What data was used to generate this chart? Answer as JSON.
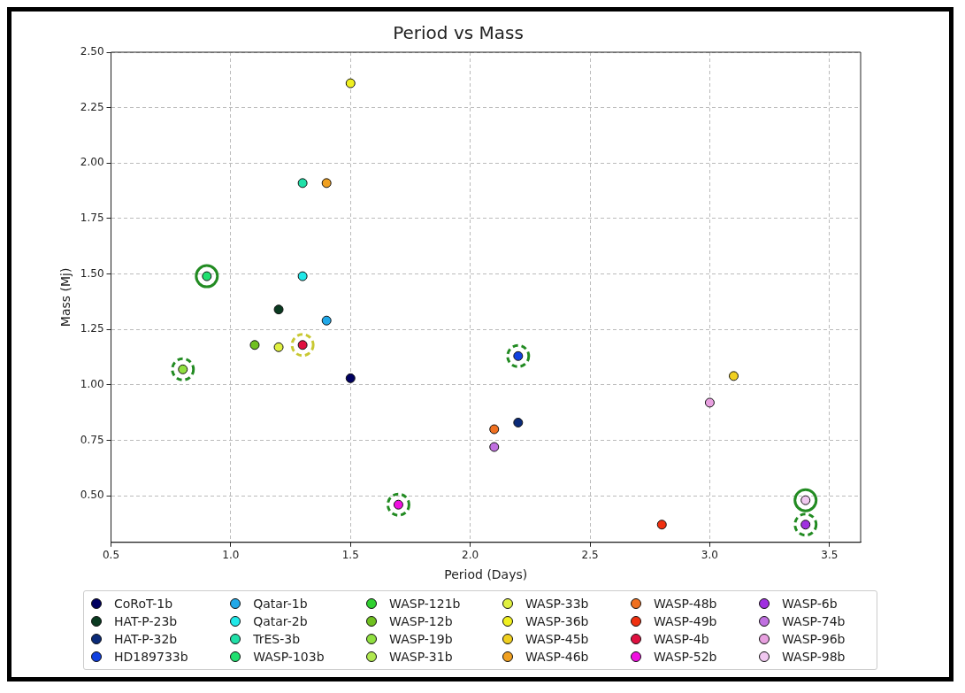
{
  "chart_data": {
    "type": "scatter",
    "title": "Period vs Mass",
    "xlabel": "Period (Days)",
    "ylabel": "Mass (Mj)",
    "xlim": [
      0.5,
      3.63
    ],
    "xticks": [
      {
        "value": 0.5,
        "label": "0.5"
      },
      {
        "value": 1,
        "label": "1.0"
      },
      {
        "value": 1.5,
        "label": "1.5"
      },
      {
        "value": 2,
        "label": "2.0"
      },
      {
        "value": 2.5,
        "label": "2.5"
      },
      {
        "value": 3,
        "label": "3.0"
      },
      {
        "value": 3.5,
        "label": "3.5"
      }
    ],
    "ylim": [
      0.29,
      2.5
    ],
    "yticks": [
      {
        "value": 0.5,
        "label": "0.50"
      },
      {
        "value": 0.75,
        "label": "0.75"
      },
      {
        "value": 1,
        "label": "1.00"
      },
      {
        "value": 1.25,
        "label": "1.25"
      },
      {
        "value": 1.5,
        "label": "1.50"
      },
      {
        "value": 1.75,
        "label": "1.75"
      },
      {
        "value": 2,
        "label": "2.00"
      },
      {
        "value": 2.25,
        "label": "2.25"
      },
      {
        "value": 2.5,
        "label": "2.50"
      }
    ],
    "grid": true,
    "legend": "bottom",
    "marker": "circle",
    "series": [
      {
        "name": "CoRoT-1b",
        "color": "#000060",
        "x": [
          1.5
        ],
        "values": [
          1.03
        ]
      },
      {
        "name": "HAT-P-23b",
        "color": "#0a3a20",
        "x": [
          1.2
        ],
        "values": [
          1.34
        ]
      },
      {
        "name": "HAT-P-32b",
        "color": "#0a2a78",
        "x": [
          2.2
        ],
        "values": [
          0.83
        ]
      },
      {
        "name": "HD189733b",
        "color": "#1040e0",
        "x": [
          2.2
        ],
        "values": [
          1.13
        ]
      },
      {
        "name": "Qatar-1b",
        "color": "#20a8e8",
        "x": [
          1.4
        ],
        "values": [
          1.29
        ]
      },
      {
        "name": "Qatar-2b",
        "color": "#20e8e8",
        "x": [
          1.3
        ],
        "values": [
          1.49
        ]
      },
      {
        "name": "TrES-3b",
        "color": "#20e0a8",
        "x": [
          1.3
        ],
        "values": [
          1.91
        ]
      },
      {
        "name": "WASP-103b",
        "color": "#20e070",
        "x": [
          0.9
        ],
        "values": [
          1.49
        ]
      },
      {
        "name": "WASP-121b",
        "color": "#30d030"
      },
      {
        "name": "WASP-12b",
        "color": "#70c020",
        "x": [
          1.1
        ],
        "values": [
          1.18
        ]
      },
      {
        "name": "WASP-19b",
        "color": "#90e040",
        "x": [
          0.8
        ],
        "values": [
          1.07
        ]
      },
      {
        "name": "WASP-31b",
        "color": "#b0e850"
      },
      {
        "name": "WASP-33b",
        "color": "#e0f040",
        "x": [
          1.2
        ],
        "values": [
          1.17
        ]
      },
      {
        "name": "WASP-36b",
        "color": "#f0f020",
        "x": [
          1.5
        ],
        "values": [
          2.36
        ]
      },
      {
        "name": "WASP-45b",
        "color": "#f0d020",
        "x": [
          3.1
        ],
        "values": [
          1.04
        ]
      },
      {
        "name": "WASP-46b",
        "color": "#f0a020",
        "x": [
          1.4
        ],
        "values": [
          1.91
        ]
      },
      {
        "name": "WASP-48b",
        "color": "#f07020",
        "x": [
          2.1
        ],
        "values": [
          0.8
        ]
      },
      {
        "name": "WASP-49b",
        "color": "#f03010",
        "x": [
          2.8
        ],
        "values": [
          0.37
        ]
      },
      {
        "name": "WASP-4b",
        "color": "#e01040",
        "x": [
          1.3
        ],
        "values": [
          1.18
        ]
      },
      {
        "name": "WASP-52b",
        "color": "#f010e0",
        "x": [
          1.7
        ],
        "values": [
          0.46
        ]
      },
      {
        "name": "WASP-6b",
        "color": "#a030e0",
        "x": [
          3.4
        ],
        "values": [
          0.37
        ]
      },
      {
        "name": "WASP-74b",
        "color": "#c070e0",
        "x": [
          2.1
        ],
        "values": [
          0.72
        ]
      },
      {
        "name": "WASP-96b",
        "color": "#e8a0e0",
        "x": [
          3.0
        ],
        "values": [
          0.92
        ]
      },
      {
        "name": "WASP-98b",
        "color": "#f0c8f0",
        "x": [
          3.4
        ],
        "values": [
          0.48
        ]
      },
      {
        "color": "#c8c832",
        "line_style": "dashed",
        "x": [
          1.3
        ],
        "values": [
          1.18
        ]
      },
      {
        "color": "#228b22",
        "line_style": "dashed",
        "x": [
          0.8,
          1.7,
          2.2,
          3.4
        ],
        "values": [
          1.07,
          0.46,
          1.13,
          0.37
        ]
      },
      {
        "color": "#228b22",
        "line_style": "solid",
        "x": [
          0.9,
          3.4
        ],
        "values": [
          1.49,
          0.48
        ]
      }
    ]
  }
}
